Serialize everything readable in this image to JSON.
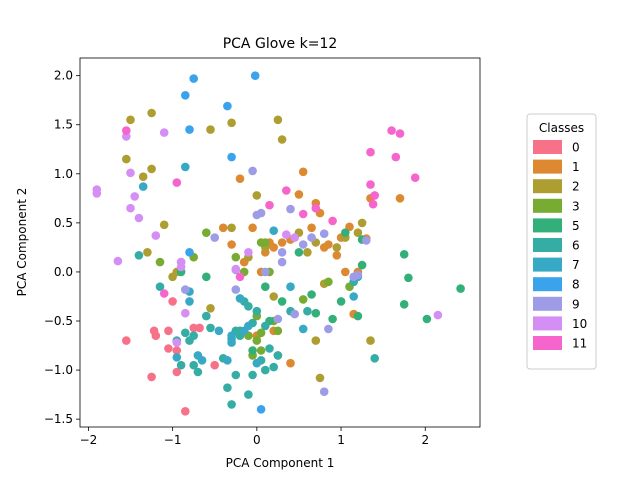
{
  "chart_data": {
    "type": "scatter",
    "title": "PCA Glove k=12",
    "xlabel": "PCA Component 1",
    "ylabel": "PCA Component 2",
    "xlim": [
      -2.1,
      2.65
    ],
    "ylim": [
      -1.58,
      2.18
    ],
    "xticks": [
      -2,
      -1,
      0,
      1,
      2
    ],
    "yticks": [
      -1.5,
      -1.0,
      -0.5,
      0.0,
      0.5,
      1.0,
      1.5,
      2.0
    ],
    "grid": false,
    "legend": {
      "title": "Classes",
      "placement": "right"
    },
    "series": [
      {
        "name": "0",
        "color": "#f77189",
        "points": [
          [
            -1.55,
            -0.7
          ],
          [
            -1.22,
            -0.6
          ],
          [
            -1.2,
            -0.65
          ],
          [
            -1.05,
            -0.6
          ],
          [
            -1.05,
            -0.78
          ],
          [
            -0.95,
            -0.8
          ],
          [
            -0.95,
            -1.02
          ],
          [
            -0.85,
            -1.42
          ],
          [
            -0.75,
            -0.57
          ],
          [
            -0.68,
            -0.57
          ],
          [
            -0.5,
            -0.95
          ],
          [
            -1.25,
            -1.07
          ],
          [
            -1.0,
            -0.3
          ]
        ]
      },
      {
        "name": "1",
        "color": "#dc8932",
        "points": [
          [
            -0.4,
            0.45
          ],
          [
            -0.3,
            0.28
          ],
          [
            -0.2,
            0.95
          ],
          [
            -0.15,
            0.1
          ],
          [
            -0.05,
            0.45
          ],
          [
            0.05,
            0.0
          ],
          [
            0.1,
            0.2
          ],
          [
            0.15,
            0.3
          ],
          [
            0.2,
            0.25
          ],
          [
            0.3,
            0.3
          ],
          [
            0.4,
            0.33
          ],
          [
            0.5,
            0.79
          ],
          [
            0.55,
            1.02
          ],
          [
            0.65,
            0.45
          ],
          [
            0.7,
            0.7
          ],
          [
            0.75,
            0.6
          ],
          [
            0.8,
            0.25
          ],
          [
            0.85,
            0.28
          ],
          [
            0.95,
            0.17
          ],
          [
            1.0,
            0.35
          ],
          [
            1.05,
            0.0
          ],
          [
            1.1,
            0.46
          ],
          [
            1.15,
            -0.43
          ],
          [
            1.2,
            0.0
          ],
          [
            1.3,
            0.34
          ],
          [
            1.35,
            0.75
          ],
          [
            1.7,
            0.75
          ],
          [
            0.0,
            -0.65
          ],
          [
            0.4,
            -0.93
          ],
          [
            0.2,
            -0.6
          ]
        ]
      },
      {
        "name": "2",
        "color": "#ae9d31",
        "points": [
          [
            -1.55,
            1.15
          ],
          [
            -1.5,
            1.55
          ],
          [
            -1.25,
            1.62
          ],
          [
            -1.25,
            1.05
          ],
          [
            -1.35,
            0.97
          ],
          [
            -1.3,
            0.2
          ],
          [
            -1.1,
            0.48
          ],
          [
            -1.0,
            -0.05
          ],
          [
            -0.95,
            0.0
          ],
          [
            -0.55,
            -0.37
          ],
          [
            -0.55,
            1.45
          ],
          [
            -0.3,
            1.52
          ],
          [
            -0.3,
            0.45
          ],
          [
            -0.1,
            0.15
          ],
          [
            0.0,
            0.78
          ],
          [
            0.1,
            0.25
          ],
          [
            0.2,
            -0.25
          ],
          [
            0.25,
            1.55
          ],
          [
            0.3,
            1.35
          ],
          [
            0.5,
            0.4
          ],
          [
            0.6,
            0.2
          ],
          [
            0.7,
            0.3
          ],
          [
            0.8,
            -0.12
          ],
          [
            0.95,
            0.25
          ],
          [
            1.05,
            0.35
          ],
          [
            1.2,
            0.4
          ],
          [
            1.25,
            0.5
          ],
          [
            1.35,
            -0.7
          ],
          [
            0.75,
            -1.08
          ],
          [
            0.7,
            -0.7
          ],
          [
            0.25,
            -0.85
          ]
        ]
      },
      {
        "name": "3",
        "color": "#77ab31",
        "points": [
          [
            -1.15,
            0.1
          ],
          [
            -0.75,
            0.15
          ],
          [
            -0.6,
            0.4
          ],
          [
            -0.25,
            0.15
          ],
          [
            -0.15,
            0.0
          ],
          [
            0.0,
            -0.45
          ],
          [
            0.05,
            0.3
          ],
          [
            0.1,
            0.3
          ],
          [
            0.15,
            0.0
          ],
          [
            0.2,
            -0.5
          ],
          [
            0.25,
            -0.6
          ],
          [
            0.55,
            -0.28
          ],
          [
            0.85,
            -0.1
          ],
          [
            1.1,
            -0.15
          ],
          [
            -0.1,
            -0.65
          ],
          [
            0.0,
            -0.7
          ],
          [
            0.05,
            -0.8
          ],
          [
            -0.05,
            -0.85
          ],
          [
            0.05,
            -0.62
          ]
        ]
      },
      {
        "name": "5",
        "color": "#33b07a",
        "points": [
          [
            -0.9,
            0.0
          ],
          [
            -0.6,
            -0.05
          ],
          [
            -0.2,
            -0.6
          ],
          [
            -0.05,
            -0.8
          ],
          [
            0.1,
            -0.15
          ],
          [
            0.15,
            -0.5
          ],
          [
            0.3,
            -0.3
          ],
          [
            0.5,
            0.2
          ],
          [
            0.65,
            -0.23
          ],
          [
            0.7,
            -0.42
          ],
          [
            0.9,
            -0.48
          ],
          [
            1.0,
            -0.3
          ],
          [
            1.05,
            0.4
          ],
          [
            1.25,
            0.07
          ],
          [
            1.25,
            0.33
          ],
          [
            1.2,
            -0.45
          ],
          [
            1.75,
            0.18
          ],
          [
            1.8,
            -0.06
          ],
          [
            1.75,
            -0.33
          ],
          [
            2.02,
            -0.48
          ],
          [
            2.42,
            -0.17
          ]
        ]
      },
      {
        "name": "6",
        "color": "#36ada4",
        "points": [
          [
            -1.4,
            0.17
          ],
          [
            -1.15,
            -0.15
          ],
          [
            -0.95,
            -0.7
          ],
          [
            -0.9,
            -0.95
          ],
          [
            -0.85,
            -0.62
          ],
          [
            -0.8,
            -0.7
          ],
          [
            -0.75,
            -0.65
          ],
          [
            -0.75,
            -0.95
          ],
          [
            -0.7,
            -1.02
          ],
          [
            -0.6,
            -0.45
          ],
          [
            -0.55,
            -0.57
          ],
          [
            -0.4,
            -0.88
          ],
          [
            -0.3,
            -0.68
          ],
          [
            -0.25,
            -0.6
          ],
          [
            -0.2,
            -0.65
          ],
          [
            -0.15,
            -0.3
          ],
          [
            -0.1,
            -0.35
          ],
          [
            -0.05,
            -0.52
          ],
          [
            0.0,
            -0.4
          ],
          [
            0.05,
            -0.9
          ],
          [
            0.1,
            -0.55
          ],
          [
            0.15,
            -0.78
          ],
          [
            0.25,
            -0.85
          ],
          [
            0.4,
            -0.4
          ],
          [
            0.6,
            -0.4
          ],
          [
            1.15,
            -0.1
          ],
          [
            1.4,
            -0.88
          ],
          [
            -0.05,
            -1.05
          ],
          [
            0.1,
            -1.0
          ],
          [
            0.2,
            -0.97
          ],
          [
            -0.25,
            -1.05
          ],
          [
            -0.3,
            -1.35
          ],
          [
            -0.35,
            -1.18
          ],
          [
            -0.1,
            -1.25
          ]
        ]
      },
      {
        "name": "7",
        "color": "#38a9c5",
        "points": [
          [
            -1.35,
            0.87
          ],
          [
            -0.85,
            1.07
          ],
          [
            -0.95,
            -0.87
          ],
          [
            -0.8,
            -0.3
          ],
          [
            -0.7,
            -0.85
          ],
          [
            -0.65,
            -0.9
          ],
          [
            -0.45,
            -0.6
          ],
          [
            -0.3,
            -0.72
          ],
          [
            -0.2,
            -0.27
          ],
          [
            -0.15,
            -0.6
          ],
          [
            -0.1,
            -0.55
          ],
          [
            0.0,
            -0.93
          ],
          [
            0.2,
            0.42
          ],
          [
            0.4,
            -0.15
          ],
          [
            0.55,
            -0.58
          ],
          [
            1.15,
            -0.25
          ],
          [
            1.2,
            -0.05
          ],
          [
            -0.35,
            -0.9
          ],
          [
            -0.3,
            -0.65
          ],
          [
            -0.8,
            -0.2
          ]
        ]
      },
      {
        "name": "8",
        "color": "#3ba3ec",
        "points": [
          [
            -0.85,
            1.8
          ],
          [
            -0.75,
            1.97
          ],
          [
            -0.8,
            1.45
          ],
          [
            -0.35,
            1.69
          ],
          [
            -0.3,
            1.17
          ],
          [
            -0.02,
            2.0
          ],
          [
            0.05,
            -1.4
          ],
          [
            -0.8,
            0.2
          ]
        ]
      },
      {
        "name": "9",
        "color": "#9e9ce6",
        "points": [
          [
            -0.9,
            0.1
          ],
          [
            -0.85,
            -0.18
          ],
          [
            -0.5,
            0.35
          ],
          [
            -0.25,
            -0.18
          ],
          [
            -0.05,
            1.03
          ],
          [
            0.0,
            0.58
          ],
          [
            0.05,
            0.6
          ],
          [
            0.1,
            0.0
          ],
          [
            0.25,
            -0.48
          ],
          [
            0.3,
            0.1
          ],
          [
            0.4,
            0.64
          ],
          [
            0.45,
            -0.43
          ],
          [
            0.55,
            0.28
          ],
          [
            0.65,
            0.35
          ],
          [
            0.8,
            0.39
          ],
          [
            0.85,
            -0.58
          ],
          [
            0.8,
            -1.22
          ],
          [
            1.15,
            -0.05
          ],
          [
            1.2,
            -0.03
          ],
          [
            1.3,
            0.32
          ],
          [
            -0.25,
            0.02
          ],
          [
            0.3,
            0.2
          ]
        ]
      },
      {
        "name": "10",
        "color": "#d58ff4",
        "points": [
          [
            -1.9,
            0.84
          ],
          [
            -1.9,
            0.8
          ],
          [
            -1.65,
            0.11
          ],
          [
            -1.55,
            1.38
          ],
          [
            -1.5,
            1.01
          ],
          [
            -1.45,
            0.77
          ],
          [
            -1.5,
            0.65
          ],
          [
            -1.4,
            0.55
          ],
          [
            -1.2,
            0.37
          ],
          [
            -1.1,
            1.42
          ],
          [
            -0.9,
            0.1
          ],
          [
            -0.85,
            -0.42
          ],
          [
            -0.25,
            0.03
          ],
          [
            -0.1,
            0.2
          ],
          [
            0.35,
            0.38
          ],
          [
            0.45,
            0.35
          ],
          [
            2.15,
            -0.44
          ],
          [
            -0.9,
            0.05
          ],
          [
            -0.95,
            -0.72
          ]
        ]
      },
      {
        "name": "11",
        "color": "#f565cc",
        "points": [
          [
            -1.55,
            1.44
          ],
          [
            -0.95,
            0.91
          ],
          [
            -0.2,
            -0.05
          ],
          [
            0.15,
            0.68
          ],
          [
            0.35,
            0.83
          ],
          [
            0.55,
            0.59
          ],
          [
            0.7,
            0.65
          ],
          [
            0.9,
            0.52
          ],
          [
            1.35,
            1.22
          ],
          [
            1.35,
            0.89
          ],
          [
            1.38,
            0.69
          ],
          [
            1.4,
            0.78
          ],
          [
            1.6,
            1.44
          ],
          [
            1.7,
            1.41
          ],
          [
            1.65,
            1.17
          ],
          [
            1.88,
            0.96
          ],
          [
            -1.1,
            -0.22
          ]
        ]
      }
    ]
  }
}
